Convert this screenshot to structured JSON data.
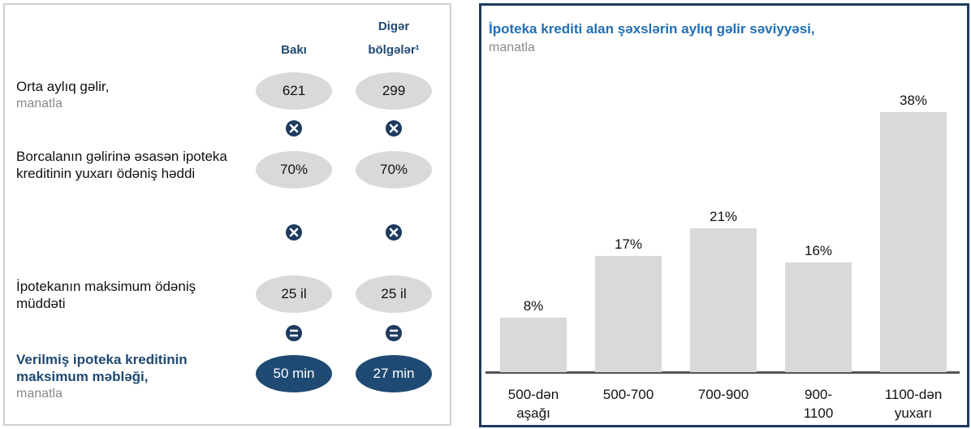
{
  "table": {
    "columns": [
      "Bakı",
      "Digər bölgələr¹"
    ],
    "rows": [
      {
        "label": "Orta aylıq gəlir,",
        "sublabel": "manatla",
        "values": [
          "621",
          "299"
        ]
      },
      {
        "label": "Borcalanın gəlirinə əsasən ipoteka kreditinin yuxarı ödəniş həddi",
        "values": [
          "70%",
          "70%"
        ]
      },
      {
        "label": "İpotekanın maksimum ödəniş müddəti",
        "values": [
          "25 il",
          "25 il"
        ]
      },
      {
        "label": "Verilmiş ipoteka kreditinin maksimum məbləği,",
        "sublabel": "manatla",
        "values": [
          "50 min",
          "27 min"
        ]
      }
    ]
  },
  "chart_data": {
    "type": "bar",
    "title": "İpoteka krediti alan şəxslərin aylıq gəlir səviyyəsi,",
    "subtitle": "manatla",
    "categories": [
      "500-dən\naşağı",
      "500-700",
      "700-900",
      "900-\n1100",
      "1100-dən\nyuxarı"
    ],
    "values": [
      8,
      17,
      21,
      16,
      38
    ],
    "value_labels": [
      "8%",
      "17%",
      "21%",
      "16%",
      "38%"
    ],
    "color": "#d9d9d9"
  }
}
